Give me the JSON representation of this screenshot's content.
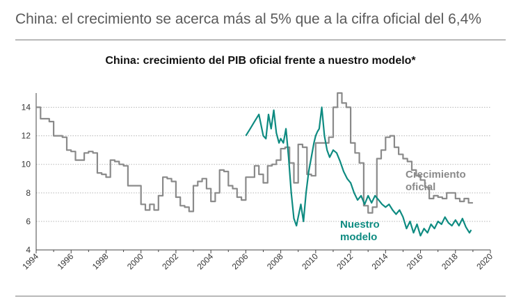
{
  "headline": "China: el crecimiento se acerca más al 5% que a la cifra oficial del 6,4%",
  "chart_data": {
    "type": "line",
    "title": "China: crecimiento del PIB oficial frente a nuestro modelo*",
    "xlabel": "",
    "ylabel": "",
    "xlim": [
      1994,
      2020
    ],
    "ylim": [
      4,
      15
    ],
    "yticks": [
      "4",
      "6",
      "8",
      "10",
      "12",
      "14"
    ],
    "xticks": [
      "1994",
      "1996",
      "1998",
      "2000",
      "2002",
      "2004",
      "2006",
      "2008",
      "2010",
      "2012",
      "2014",
      "2016",
      "2018",
      "2020"
    ],
    "grid": "horizontal dotted",
    "colors": {
      "official": "#8a8a8a",
      "model": "#0e8b81"
    },
    "series": [
      {
        "name": "Crecimiento oficial",
        "label_lines": [
          "Crecimiento",
          "oficial"
        ],
        "step": true,
        "x": [
          1994.0,
          1994.25,
          1994.5,
          1994.75,
          1995.0,
          1995.25,
          1995.5,
          1995.75,
          1996.0,
          1996.25,
          1996.5,
          1996.75,
          1997.0,
          1997.25,
          1997.5,
          1997.75,
          1998.0,
          1998.25,
          1998.5,
          1998.75,
          1999.0,
          1999.25,
          1999.5,
          1999.75,
          2000.0,
          2000.25,
          2000.5,
          2000.75,
          2001.0,
          2001.25,
          2001.5,
          2001.75,
          2002.0,
          2002.25,
          2002.5,
          2002.75,
          2003.0,
          2003.25,
          2003.5,
          2003.75,
          2004.0,
          2004.25,
          2004.5,
          2004.75,
          2005.0,
          2005.25,
          2005.5,
          2005.75,
          2006.0,
          2006.25,
          2006.5,
          2006.75,
          2007.0,
          2007.25,
          2007.5,
          2007.75,
          2008.0,
          2008.25,
          2008.5,
          2008.75,
          2009.0,
          2009.25,
          2009.5,
          2009.75,
          2010.0,
          2010.25,
          2010.5,
          2010.75,
          2011.0,
          2011.25,
          2011.5,
          2011.75,
          2012.0,
          2012.25,
          2012.5,
          2012.75,
          2013.0,
          2013.25,
          2013.5,
          2013.75,
          2014.0,
          2014.25,
          2014.5,
          2014.75,
          2015.0,
          2015.25,
          2015.5,
          2015.75,
          2016.0,
          2016.25,
          2016.5,
          2016.75,
          2017.0,
          2017.25,
          2017.5,
          2017.75,
          2018.0,
          2018.25,
          2018.5,
          2018.75
        ],
        "values": [
          14.0,
          13.2,
          13.2,
          13.0,
          12.0,
          12.0,
          11.9,
          11.0,
          10.9,
          10.3,
          10.3,
          10.8,
          10.9,
          10.8,
          9.4,
          9.3,
          9.1,
          10.3,
          10.2,
          10.0,
          9.9,
          8.5,
          8.5,
          8.5,
          7.2,
          6.8,
          7.2,
          6.8,
          7.8,
          9.1,
          9.0,
          8.8,
          7.7,
          7.1,
          7.0,
          6.7,
          8.5,
          8.8,
          9.0,
          8.3,
          7.4,
          8.0,
          9.6,
          9.5,
          8.5,
          8.3,
          7.7,
          7.5,
          9.1,
          9.1,
          9.9,
          9.3,
          8.7,
          9.9,
          10.0,
          10.3,
          11.1,
          11.2,
          10.1,
          8.7,
          11.4,
          11.2,
          9.3,
          9.2,
          11.5,
          11.5,
          11.5,
          11.9,
          14.0,
          15.0,
          14.3,
          14.0,
          11.5,
          10.8,
          10.1,
          7.1,
          6.6,
          7.0,
          10.4,
          11.0,
          11.9,
          12.0,
          11.2,
          10.7,
          10.4,
          10.2,
          9.6,
          9.2,
          8.9,
          8.4,
          7.6,
          7.8,
          7.7,
          7.6,
          8.0,
          8.0,
          7.6,
          7.4,
          7.6,
          7.3
        ]
      },
      {
        "name": "Nuestro modelo",
        "label_lines": [
          "Nuestro",
          "modelo"
        ],
        "step": false,
        "x": [
          2006.0,
          2006.25,
          2006.5,
          2006.75,
          2007.0,
          2007.15,
          2007.3,
          2007.45,
          2007.6,
          2007.75,
          2007.9,
          2008.0,
          2008.15,
          2008.3,
          2008.45,
          2008.6,
          2008.75,
          2008.9,
          2009.0,
          2009.15,
          2009.3,
          2009.45,
          2009.6,
          2009.75,
          2009.9,
          2010.0,
          2010.1,
          2010.2,
          2010.35,
          2010.5,
          2010.65,
          2010.8,
          2011.0,
          2011.2,
          2011.4,
          2011.6,
          2011.8,
          2012.0,
          2012.2,
          2012.4,
          2012.6,
          2012.8,
          2013.0,
          2013.2,
          2013.4,
          2013.6,
          2013.8,
          2014.0,
          2014.2,
          2014.4,
          2014.6,
          2014.8,
          2015.0,
          2015.2,
          2015.4,
          2015.6,
          2015.8,
          2016.0,
          2016.2,
          2016.4,
          2016.6,
          2016.8,
          2017.0,
          2017.2,
          2017.4,
          2017.6,
          2017.8,
          2018.0,
          2018.2,
          2018.4,
          2018.6,
          2018.8,
          2018.9
        ],
        "values": [
          12.0,
          12.5,
          13.0,
          13.5,
          12.0,
          11.8,
          13.5,
          12.5,
          13.8,
          12.2,
          11.5,
          11.8,
          11.5,
          12.5,
          10.5,
          8.0,
          6.2,
          5.7,
          6.3,
          7.2,
          6.0,
          8.0,
          9.5,
          10.5,
          11.5,
          12.0,
          12.3,
          12.5,
          14.0,
          12.0,
          11.0,
          10.5,
          11.0,
          10.8,
          10.2,
          9.5,
          9.0,
          8.7,
          8.0,
          7.5,
          7.8,
          7.2,
          7.8,
          7.3,
          7.8,
          7.5,
          7.2,
          7.0,
          7.2,
          6.8,
          6.5,
          6.8,
          6.3,
          5.5,
          6.0,
          5.2,
          5.8,
          5.0,
          5.5,
          5.2,
          5.8,
          5.5,
          6.0,
          5.8,
          6.3,
          5.9,
          5.7,
          6.1,
          5.7,
          6.2,
          5.6,
          5.2,
          5.4
        ]
      }
    ]
  }
}
